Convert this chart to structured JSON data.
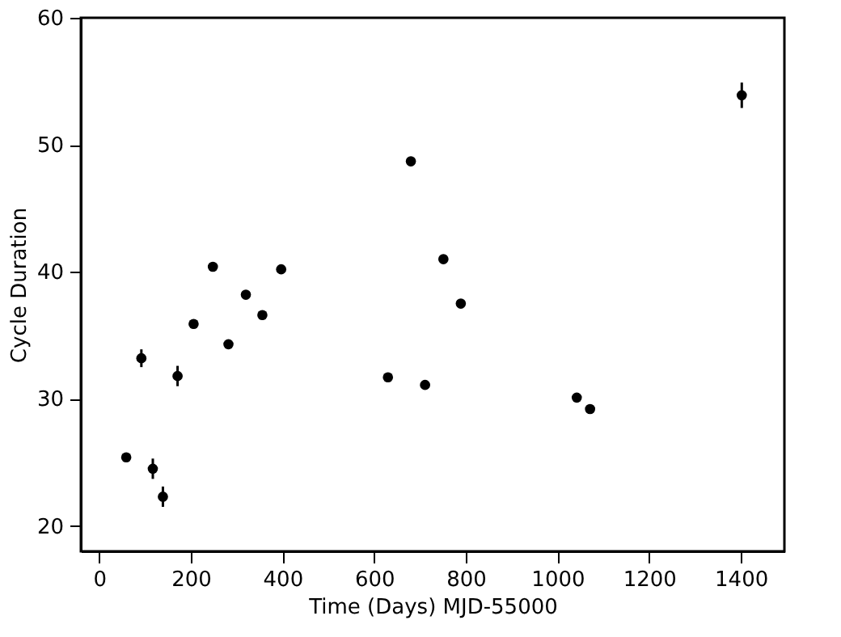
{
  "chart_data": {
    "type": "scatter",
    "xlabel": "Time (Days) MJD-55000",
    "ylabel": "Cycle Duration",
    "x": [
      59,
      92,
      117,
      139,
      171,
      206,
      248,
      282,
      320,
      356,
      397,
      630,
      680,
      711,
      751,
      789,
      1042,
      1071,
      1402
    ],
    "series": [
      {
        "color": "#000000",
        "values": [
          25.4,
          33.2,
          24.5,
          22.3,
          31.8,
          35.9,
          40.4,
          34.3,
          38.2,
          36.6,
          40.2,
          31.7,
          48.7,
          31.1,
          41.0,
          37.5,
          30.1,
          29.2,
          53.9
        ],
        "errors": [
          0.3,
          0.7,
          0.8,
          0.8,
          0.8,
          0.3,
          0.3,
          0.3,
          0.3,
          0.3,
          0.3,
          0.3,
          0.3,
          0.3,
          0.3,
          0.3,
          0.3,
          0.3,
          1.0
        ]
      }
    ],
    "xlim": [
      -40,
      1495
    ],
    "xticks": [
      0,
      200,
      400,
      600,
      800,
      1000,
      1200,
      1400
    ],
    "ylim": [
      18,
      60
    ],
    "yticks": [
      20,
      30,
      40,
      50,
      60
    ],
    "marker": "circle",
    "grid": false
  }
}
